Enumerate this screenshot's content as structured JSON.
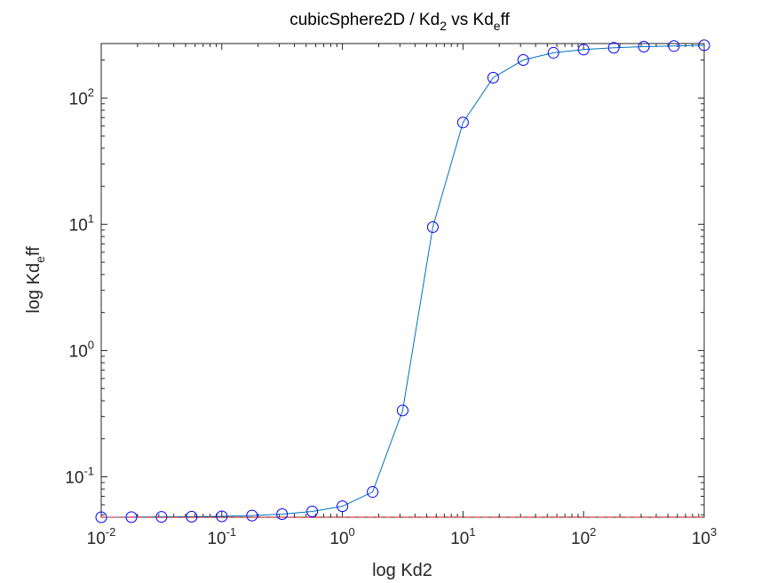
{
  "chart_data": {
    "type": "line",
    "title": {
      "pre": "cubicSphere2D / Kd",
      "sub1": "2",
      "mid": " vs Kd",
      "sub2": "e",
      "post": "ff"
    },
    "xlabel": "log Kd2",
    "ylabel": {
      "pre": "log Kd",
      "sub": "e",
      "post": "ff"
    },
    "x_scale": "log",
    "y_scale": "log",
    "xlim": [
      0.01,
      1000
    ],
    "ylim": [
      0.0478,
      270
    ],
    "x_ticks": [
      {
        "base": "10",
        "exp": "-2"
      },
      {
        "base": "10",
        "exp": "-1"
      },
      {
        "base": "10",
        "exp": "0"
      },
      {
        "base": "10",
        "exp": "1"
      },
      {
        "base": "10",
        "exp": "2"
      },
      {
        "base": "10",
        "exp": "3"
      }
    ],
    "y_ticks": [
      {
        "base": "10",
        "exp": "-1"
      },
      {
        "base": "10",
        "exp": "0"
      },
      {
        "base": "10",
        "exp": "1"
      },
      {
        "base": "10",
        "exp": "2"
      }
    ],
    "grid": false,
    "series": [
      {
        "marker": "circle",
        "line_color": "#0072BD",
        "marker_color": "#0000FF",
        "x": [
          0.01,
          0.0178,
          0.0316,
          0.0562,
          0.1,
          0.178,
          0.316,
          0.562,
          1,
          1.78,
          3.16,
          5.62,
          10,
          17.8,
          31.6,
          56.2,
          100,
          178,
          316,
          562,
          1000
        ],
        "y": [
          0.0478,
          0.0479,
          0.0481,
          0.0483,
          0.0486,
          0.0493,
          0.0506,
          0.0531,
          0.0584,
          0.0758,
          0.335,
          9.5,
          64,
          145,
          200,
          228,
          242,
          250,
          255,
          258,
          262
        ]
      },
      {
        "line_style": "dashed",
        "line_color": "#FF0000",
        "x": [
          0.01,
          1000
        ],
        "y": [
          0.0478,
          0.0478
        ]
      }
    ]
  }
}
